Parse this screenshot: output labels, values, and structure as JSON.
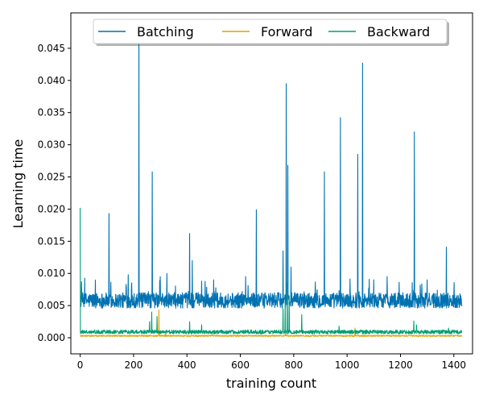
{
  "chart_data": {
    "type": "line",
    "xlabel": "training count",
    "ylabel": "Learning time",
    "xlim": [
      -35,
      1470
    ],
    "ylim": [
      -0.0025,
      0.0505
    ],
    "x_ticks": [
      0,
      200,
      400,
      600,
      800,
      1000,
      1200,
      1400
    ],
    "y_ticks": [
      0.0,
      0.005,
      0.01,
      0.015,
      0.02,
      0.025,
      0.03,
      0.035,
      0.04,
      0.045
    ],
    "y_tick_labels": [
      "0.000",
      "0.005",
      "0.010",
      "0.015",
      "0.020",
      "0.025",
      "0.030",
      "0.035",
      "0.040",
      "0.045"
    ],
    "grid": false,
    "legend": {
      "placement": "top-center",
      "columns": 3
    },
    "series": [
      {
        "name": "Batching",
        "color": "#0072b2",
        "baseline": 0.0058,
        "noise": 0.0012,
        "x_max": 1430,
        "spikes": [
          [
            2,
            0.0065
          ],
          [
            108,
            0.0193
          ],
          [
            180,
            0.0098
          ],
          [
            220,
            0.047
          ],
          [
            270,
            0.0258
          ],
          [
            300,
            0.0095
          ],
          [
            325,
            0.01
          ],
          [
            410,
            0.0162
          ],
          [
            420,
            0.012
          ],
          [
            500,
            0.009
          ],
          [
            620,
            0.0095
          ],
          [
            660,
            0.0199
          ],
          [
            760,
            0.0135
          ],
          [
            772,
            0.0395
          ],
          [
            778,
            0.0268
          ],
          [
            790,
            0.011
          ],
          [
            915,
            0.0258
          ],
          [
            975,
            0.0342
          ],
          [
            1040,
            0.0285
          ],
          [
            1058,
            0.0427
          ],
          [
            1100,
            0.009
          ],
          [
            1150,
            0.0095
          ],
          [
            1252,
            0.032
          ],
          [
            1300,
            0.009
          ],
          [
            1372,
            0.0141
          ]
        ]
      },
      {
        "name": "Forward",
        "color": "#e69f00",
        "baseline": 0.0003,
        "noise": 0.0001,
        "x_max": 1430,
        "spikes": [
          [
            295,
            0.0043
          ],
          [
            320,
            0.001
          ],
          [
            770,
            0.001
          ],
          [
            1030,
            0.0015
          ]
        ]
      },
      {
        "name": "Backward",
        "color": "#009e73",
        "baseline": 0.0009,
        "noise": 0.0003,
        "x_max": 1430,
        "spikes": [
          [
            0,
            0.0202
          ],
          [
            260,
            0.0025
          ],
          [
            268,
            0.004
          ],
          [
            288,
            0.0033
          ],
          [
            410,
            0.0025
          ],
          [
            455,
            0.002
          ],
          [
            760,
            0.0045
          ],
          [
            768,
            0.0055
          ],
          [
            776,
            0.0085
          ],
          [
            783,
            0.0065
          ],
          [
            830,
            0.0036
          ],
          [
            970,
            0.0018
          ],
          [
            1250,
            0.0026
          ],
          [
            1260,
            0.002
          ],
          [
            1380,
            0.0015
          ]
        ]
      }
    ]
  }
}
